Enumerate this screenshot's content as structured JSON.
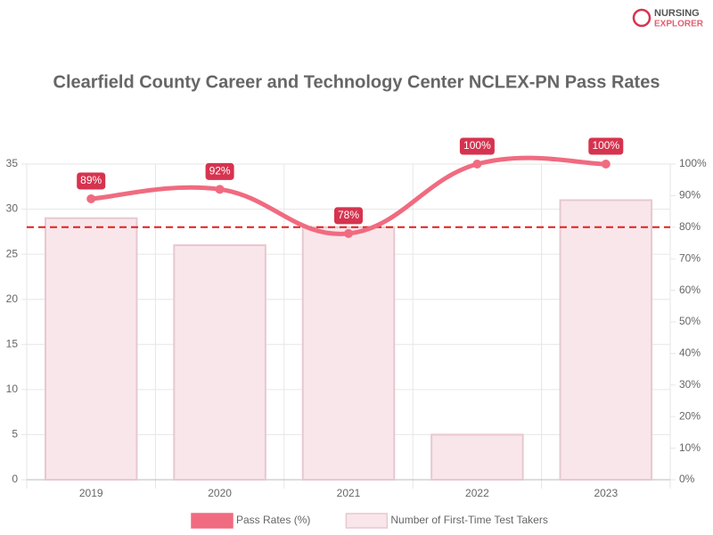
{
  "logo": [
    "NURSING",
    "EXPLORER"
  ],
  "chart_data": {
    "type": "bar-line",
    "title": "Clearfield County Career and Technology Center NCLEX-PN Pass Rates",
    "categories": [
      "2019",
      "2020",
      "2021",
      "2022",
      "2023"
    ],
    "series": [
      {
        "name": "Pass Rates (%)",
        "type": "line",
        "axis": "y2",
        "color": "#f06b80",
        "values": [
          89,
          92,
          78,
          100,
          100
        ],
        "value_labels": [
          "89%",
          "92%",
          "78%",
          "100%",
          "100%"
        ],
        "label_color": "#d6334f"
      },
      {
        "name": "Number of First-Time Test Takers",
        "type": "bar",
        "axis": "y",
        "color": "#f9e6ea",
        "border_color": "#e6c9d0",
        "values": [
          29,
          26,
          28,
          5,
          31
        ]
      }
    ],
    "reference_line": {
      "value": 80,
      "axis": "y2",
      "color": "#e02020",
      "dashed": true
    },
    "ylim": [
      0,
      35
    ],
    "yticks": [
      0,
      5,
      10,
      15,
      20,
      25,
      30,
      35
    ],
    "y2lim": [
      0,
      100
    ],
    "y2ticks": [
      {
        "value": 0,
        "label": "0%"
      },
      {
        "value": 10,
        "label": "10%"
      },
      {
        "value": 20,
        "label": "20%"
      },
      {
        "value": 30,
        "label": "30%"
      },
      {
        "value": 40,
        "label": "40%"
      },
      {
        "value": 50,
        "label": "50%"
      },
      {
        "value": 60,
        "label": "60%"
      },
      {
        "value": 70,
        "label": "70%"
      },
      {
        "value": 80,
        "label": "80%"
      },
      {
        "value": 90,
        "label": "90%"
      },
      {
        "value": 100,
        "label": "100%"
      }
    ],
    "grid": true,
    "legend": "bottom"
  }
}
